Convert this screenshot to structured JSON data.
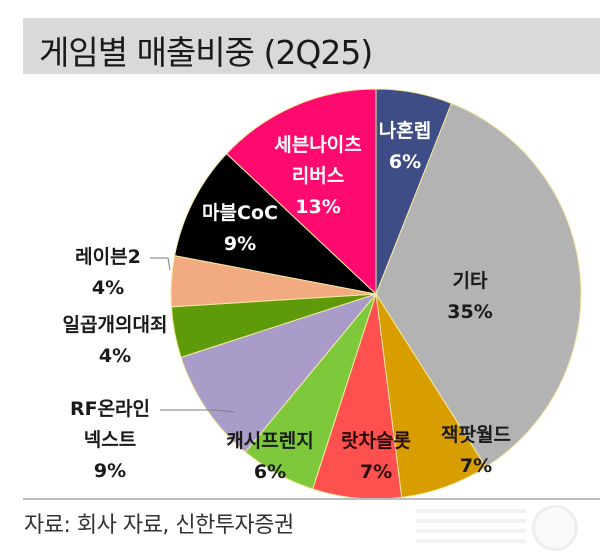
{
  "header": {
    "title": "게임별 매출비중 (2Q25)"
  },
  "footer": {
    "source": "자료: 회사 자료, 신한투자증권"
  },
  "chart_data": {
    "type": "pie",
    "title": "게임별 매출비중 (2Q25)",
    "start_angle": "12 o'clock, clockwise",
    "slices": [
      {
        "label": "나혼렙",
        "value": 6,
        "display": "6%",
        "color": "#3f4d87"
      },
      {
        "label": "기타",
        "value": 35,
        "display": "35%",
        "color": "#b3b3b3"
      },
      {
        "label": "잭팟월드",
        "value": 7,
        "display": "7%",
        "color": "#d89e00"
      },
      {
        "label": "랏차슬롯",
        "value": 7,
        "display": "7%",
        "color": "#ff5050"
      },
      {
        "label": "캐시프렌지",
        "value": 6,
        "display": "6%",
        "color": "#7ec83c"
      },
      {
        "label": "RF온라인 넥스트",
        "value": 9,
        "display": "9%",
        "color": "#a99cc8"
      },
      {
        "label": "일곱개의대죄",
        "value": 4,
        "display": "4%",
        "color": "#5f9a0a"
      },
      {
        "label": "레이븐2",
        "value": 4,
        "display": "4%",
        "color": "#f2aa80"
      },
      {
        "label": "마블CoC",
        "value": 9,
        "display": "9%",
        "color": "#000000"
      },
      {
        "label": "세븐나이츠 리버스",
        "value": 13,
        "display": "13%",
        "color": "#ff0a6e"
      }
    ]
  },
  "labels": {
    "narhonrep": {
      "name": "나혼렙",
      "pct": "6%"
    },
    "etc": {
      "name": "기타",
      "pct": "35%"
    },
    "jackpot": {
      "name": "잭팟월드",
      "pct": "7%"
    },
    "lotcha": {
      "name": "랏차슬롯",
      "pct": "7%"
    },
    "cash": {
      "name": "캐시프렌지",
      "pct": "6%"
    },
    "rf": {
      "name1": "RF온라인",
      "name2": "넥스트",
      "pct": "9%"
    },
    "seven_deadly": {
      "name": "일곱개의대죄",
      "pct": "4%"
    },
    "raven": {
      "name": "레이븐2",
      "pct": "4%"
    },
    "marvel": {
      "name": "마블CoC",
      "pct": "9%"
    },
    "seven_knights": {
      "name1": "세븐나이츠",
      "name2": "리버스",
      "pct": "13%"
    }
  }
}
